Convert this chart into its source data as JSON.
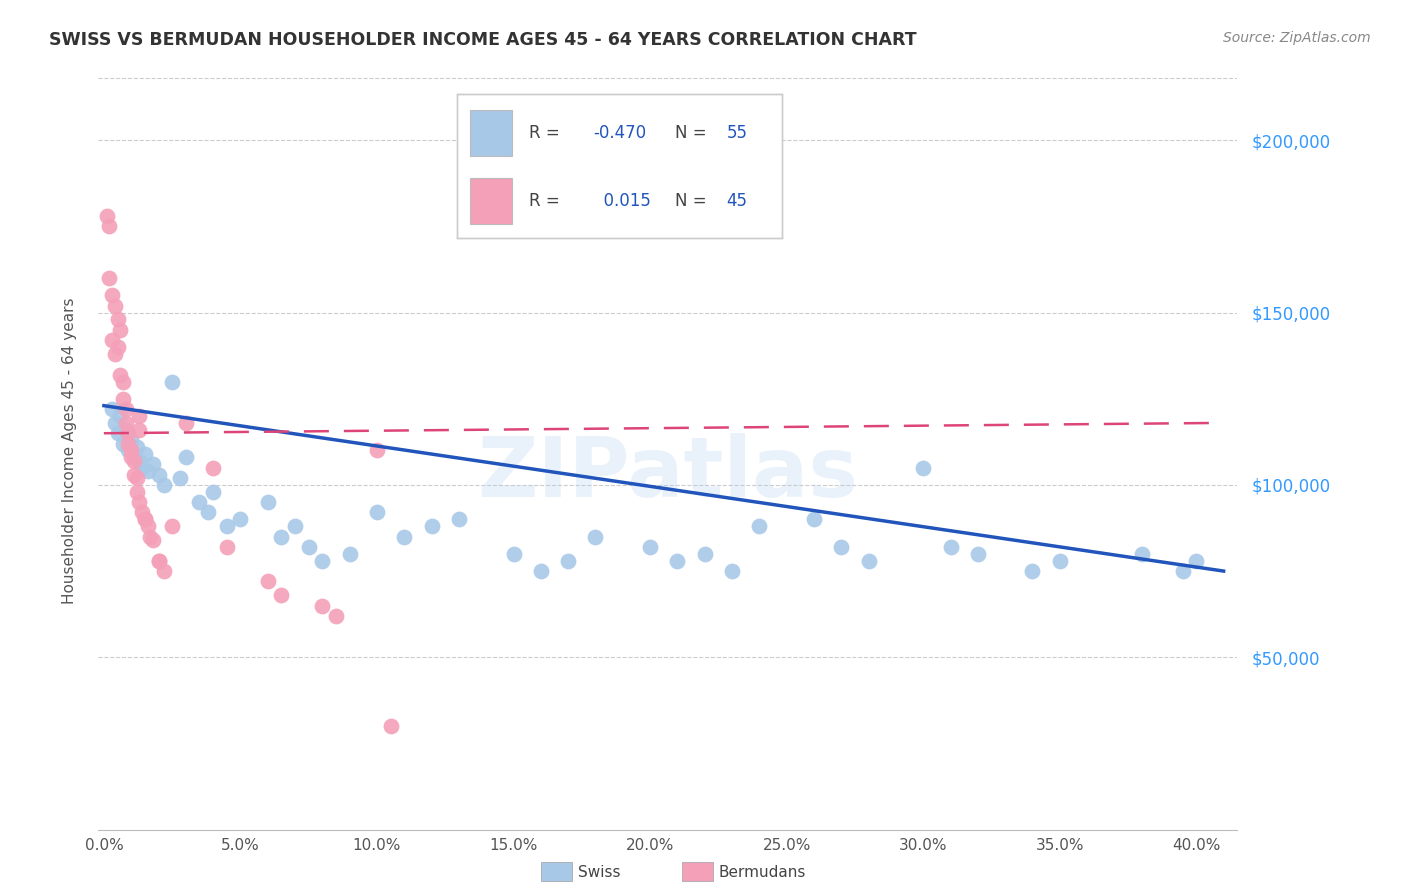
{
  "title": "SWISS VS BERMUDAN HOUSEHOLDER INCOME AGES 45 - 64 YEARS CORRELATION CHART",
  "source": "Source: ZipAtlas.com",
  "ylabel": "Householder Income Ages 45 - 64 years",
  "ytick_labels": [
    "$50,000",
    "$100,000",
    "$150,000",
    "$200,000"
  ],
  "ytick_values": [
    50000,
    100000,
    150000,
    200000
  ],
  "ylim": [
    0,
    220000
  ],
  "xlim": [
    -0.002,
    0.415
  ],
  "legend_swiss_R": "-0.470",
  "legend_swiss_N": "55",
  "legend_berm_R": "0.015",
  "legend_berm_N": "45",
  "swiss_color": "#a8c8e8",
  "berm_color": "#f4a0b8",
  "swiss_line_color": "#2255bb",
  "berm_line_color": "#dd4477",
  "watermark": "ZIPatlas",
  "swiss_x": [
    0.003,
    0.004,
    0.005,
    0.006,
    0.007,
    0.008,
    0.009,
    0.01,
    0.011,
    0.012,
    0.013,
    0.014,
    0.015,
    0.016,
    0.018,
    0.02,
    0.022,
    0.025,
    0.028,
    0.03,
    0.035,
    0.038,
    0.04,
    0.045,
    0.05,
    0.06,
    0.065,
    0.07,
    0.075,
    0.08,
    0.09,
    0.1,
    0.11,
    0.12,
    0.13,
    0.15,
    0.16,
    0.17,
    0.18,
    0.2,
    0.21,
    0.22,
    0.23,
    0.24,
    0.26,
    0.27,
    0.28,
    0.3,
    0.31,
    0.32,
    0.34,
    0.35,
    0.38,
    0.395,
    0.4
  ],
  "swiss_y": [
    122000,
    118000,
    115000,
    120000,
    112000,
    116000,
    110000,
    113000,
    108000,
    111000,
    107000,
    105000,
    109000,
    104000,
    106000,
    103000,
    100000,
    130000,
    102000,
    108000,
    95000,
    92000,
    98000,
    88000,
    90000,
    95000,
    85000,
    88000,
    82000,
    78000,
    80000,
    92000,
    85000,
    88000,
    90000,
    80000,
    75000,
    78000,
    85000,
    82000,
    78000,
    80000,
    75000,
    88000,
    90000,
    82000,
    78000,
    105000,
    82000,
    80000,
    75000,
    78000,
    80000,
    75000,
    78000
  ],
  "berm_x": [
    0.001,
    0.002,
    0.002,
    0.003,
    0.003,
    0.004,
    0.004,
    0.005,
    0.005,
    0.006,
    0.006,
    0.007,
    0.007,
    0.008,
    0.008,
    0.009,
    0.009,
    0.01,
    0.01,
    0.011,
    0.011,
    0.012,
    0.012,
    0.013,
    0.013,
    0.014,
    0.015,
    0.016,
    0.017,
    0.018,
    0.02,
    0.022,
    0.025,
    0.03,
    0.04,
    0.045,
    0.06,
    0.065,
    0.08,
    0.085,
    0.1,
    0.105,
    0.013,
    0.015,
    0.02
  ],
  "berm_y": [
    178000,
    175000,
    160000,
    155000,
    142000,
    152000,
    138000,
    148000,
    140000,
    145000,
    132000,
    130000,
    125000,
    122000,
    118000,
    115000,
    112000,
    110000,
    108000,
    107000,
    103000,
    102000,
    98000,
    116000,
    95000,
    92000,
    90000,
    88000,
    85000,
    84000,
    78000,
    75000,
    88000,
    118000,
    105000,
    82000,
    72000,
    68000,
    65000,
    62000,
    110000,
    30000,
    120000,
    90000,
    78000
  ]
}
